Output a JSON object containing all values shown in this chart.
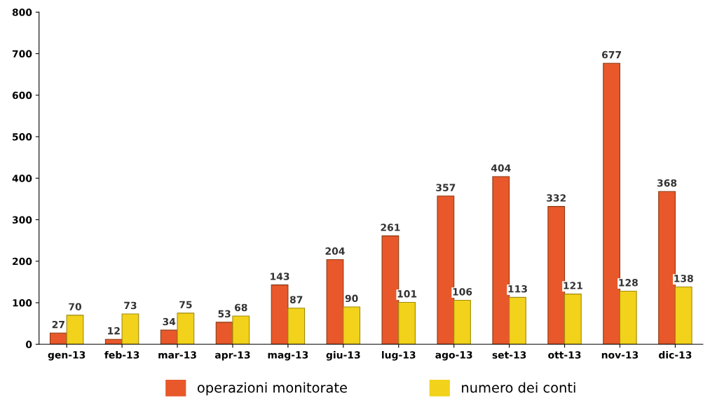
{
  "chart_data": {
    "type": "bar",
    "categories": [
      "gen-13",
      "feb-13",
      "mar-13",
      "apr-13",
      "mag-13",
      "giu-13",
      "lug-13",
      "ago-13",
      "set-13",
      "ott-13",
      "nov-13",
      "dic-13"
    ],
    "series": [
      {
        "name": "operazioni monitorate",
        "color": "#e8582a",
        "values": [
          27,
          12,
          34,
          53,
          143,
          204,
          261,
          357,
          404,
          332,
          677,
          368
        ]
      },
      {
        "name": "numero dei conti",
        "color": "#f2d21a",
        "values": [
          70,
          73,
          75,
          68,
          87,
          90,
          101,
          106,
          113,
          121,
          128,
          138
        ]
      }
    ],
    "ylim": [
      0,
      800
    ],
    "yticks": [
      0,
      100,
      200,
      300,
      400,
      500,
      600,
      700,
      800
    ],
    "grid": false,
    "legend": "bottom",
    "data_labels": true
  }
}
